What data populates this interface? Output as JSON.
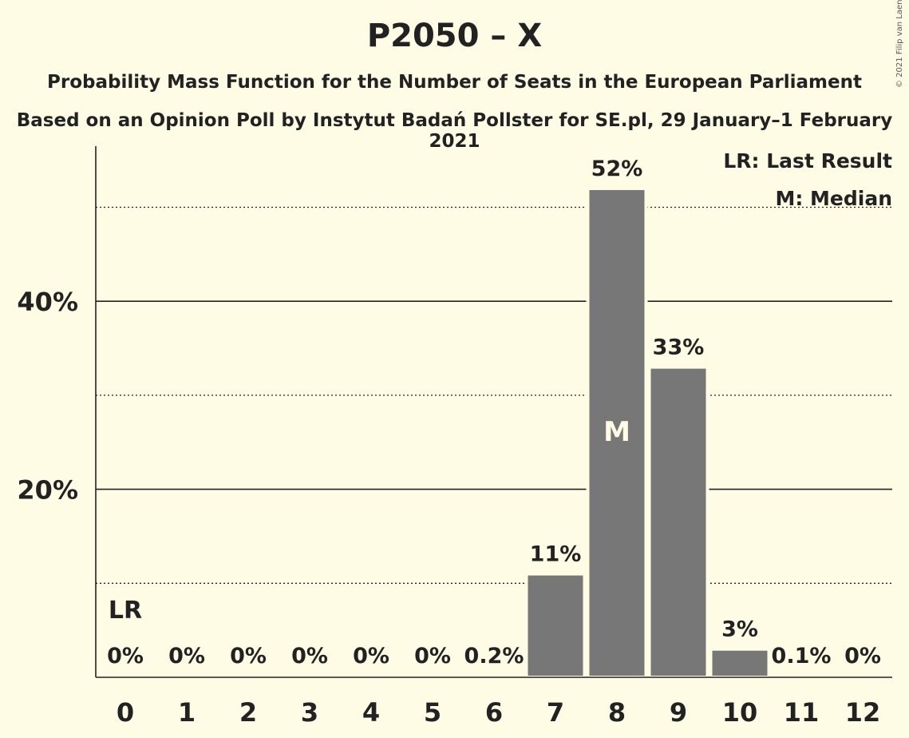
{
  "header": {
    "title": "P2050 – X",
    "subtitle": "Probability Mass Function for the Number of Seats in the European Parliament",
    "source": "Based on an Opinion Poll by Instytut Badań Pollster for SE.pl, 29 January–1 February 2021",
    "copyright": "© 2021 Filip van Laenen"
  },
  "chart_data": {
    "type": "bar",
    "categories": [
      "0",
      "1",
      "2",
      "3",
      "4",
      "5",
      "6",
      "7",
      "8",
      "9",
      "10",
      "11",
      "12"
    ],
    "values": [
      0,
      0,
      0,
      0,
      0,
      0,
      0.2,
      11,
      52,
      33,
      3,
      0.1,
      0
    ],
    "data_labels": [
      "0%",
      "0%",
      "0%",
      "0%",
      "0%",
      "0%",
      "0.2%",
      "11%",
      "52%",
      "33%",
      "3%",
      "0.1%",
      "0%"
    ],
    "ylim": [
      0,
      56.5
    ],
    "y_ticks": [
      20,
      40
    ],
    "y_tick_labels": [
      "20%",
      "40%"
    ],
    "minor_gridlines": [
      10,
      30,
      50
    ],
    "last_result_index": 0,
    "median_index": 8,
    "last_result_label": "LR",
    "median_label": "M",
    "legend": [
      "LR: Last Result",
      "M: Median"
    ],
    "legend_position": "top-right",
    "bar_color": "#777777",
    "background_color": "#fffce6"
  }
}
